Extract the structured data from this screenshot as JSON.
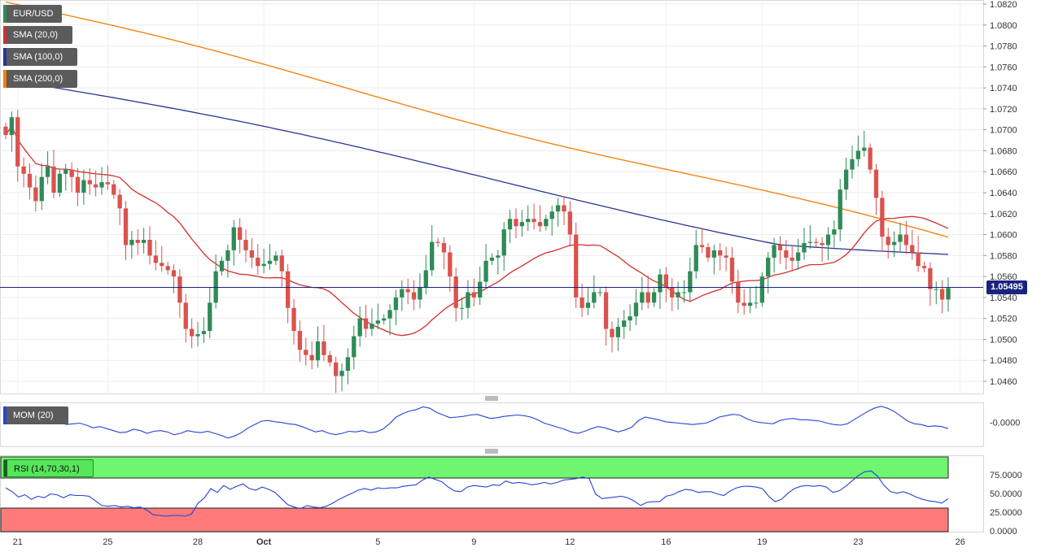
{
  "chart_data": [
    {
      "type": "candlestick",
      "symbol": "EUR/USD",
      "overlays": [
        {
          "name": "SMA (20,0)",
          "color": "#d32f2f"
        },
        {
          "name": "SMA (100,0)",
          "color": "#283593"
        },
        {
          "name": "SMA (200,0)",
          "color": "#f57c00"
        }
      ],
      "y_ticks": [
        "1.0820",
        "1.0800",
        "1.0780",
        "1.0760",
        "1.0740",
        "1.0720",
        "1.0700",
        "1.0680",
        "1.0660",
        "1.0640",
        "1.0620",
        "1.0600",
        "1.0580",
        "1.0560",
        "1.0540",
        "1.0520",
        "1.0500",
        "1.0480",
        "1.0460"
      ],
      "ylim": [
        1.045,
        1.0823
      ],
      "current_price": "1.05495",
      "x_ticks": [
        "21",
        "25",
        "28",
        "Oct",
        "5",
        "9",
        "12",
        "16",
        "19",
        "23",
        "26"
      ],
      "closes": [
        1.0695,
        1.0712,
        1.0665,
        1.0658,
        1.0645,
        1.0632,
        1.0655,
        1.0665,
        1.064,
        1.0658,
        1.0662,
        1.0655,
        1.064,
        1.0652,
        1.0648,
        1.0645,
        1.065,
        1.0648,
        1.0638,
        1.0625,
        1.059,
        1.0595,
        1.0592,
        1.0595,
        1.058,
        1.0573,
        1.057,
        1.0566,
        1.056,
        1.0535,
        1.051,
        1.0503,
        1.0505,
        1.0508,
        1.0535,
        1.0565,
        1.0575,
        1.0585,
        1.0607,
        1.0595,
        1.0585,
        1.0578,
        1.057,
        1.0572,
        1.0575,
        1.058,
        1.0565,
        1.053,
        1.0508,
        1.049,
        1.0485,
        1.048,
        1.0498,
        1.0485,
        1.0478,
        1.0465,
        1.047,
        1.0483,
        1.0503,
        1.052,
        1.051,
        1.0515,
        1.0518,
        1.052,
        1.0528,
        1.054,
        1.0548,
        1.0545,
        1.0538,
        1.055,
        1.0566,
        1.0593,
        1.0592,
        1.0583,
        1.056,
        1.053,
        1.053,
        1.0545,
        1.054,
        1.0555,
        1.0575,
        1.0578,
        1.058,
        1.0605,
        1.0615,
        1.0608,
        1.0612,
        1.0615,
        1.0612,
        1.0608,
        1.0615,
        1.0622,
        1.0628,
        1.0622,
        1.06,
        1.054,
        1.053,
        1.0535,
        1.0545,
        1.0545,
        1.051,
        1.0502,
        1.0512,
        1.0518,
        1.0522,
        1.0535,
        1.0545,
        1.0535,
        1.0545,
        1.0562,
        1.055,
        1.054,
        1.0545,
        1.0545,
        1.0565,
        1.059,
        1.0588,
        1.0578,
        1.0585,
        1.058,
        1.0578,
        1.0555,
        1.0535,
        1.0532,
        1.0535,
        1.0535,
        1.056,
        1.0578,
        1.059,
        1.0585,
        1.0578,
        1.0575,
        1.0583,
        1.0592,
        1.0593,
        1.0592,
        1.059,
        1.06,
        1.0605,
        1.0643,
        1.0662,
        1.0672,
        1.068,
        1.0683,
        1.0662,
        1.0635,
        1.0598,
        1.059,
        1.0593,
        1.06,
        1.059,
        1.0583,
        1.057,
        1.0568,
        1.0548,
        1.0548,
        1.0538,
        1.0549
      ]
    },
    {
      "type": "line",
      "indicator": "MOM (20)",
      "y_ticks": [
        "-0.0000"
      ],
      "ylim": [
        -0.034,
        0.026
      ],
      "values": [
        0.005,
        0.004,
        0.001,
        0.002,
        -0.001,
        0.003,
        0.002,
        -0.002,
        0.001,
        -0.003,
        -0.002,
        -0.001,
        -0.004,
        -0.008,
        -0.006,
        -0.009,
        -0.012,
        -0.015,
        -0.014,
        -0.01,
        -0.012,
        -0.016,
        -0.013,
        -0.012,
        -0.014,
        -0.018,
        -0.016,
        -0.012,
        -0.014,
        -0.015,
        -0.013,
        -0.016,
        -0.019,
        -0.023,
        -0.02,
        -0.015,
        -0.008,
        -0.003,
        0.002,
        0.003,
        0.001,
        0.0,
        -0.002,
        -0.003,
        -0.006,
        -0.01,
        -0.014,
        -0.012,
        -0.016,
        -0.018,
        -0.016,
        -0.013,
        -0.014,
        -0.012,
        -0.015,
        -0.014,
        -0.01,
        -0.002,
        0.008,
        0.013,
        0.017,
        0.019,
        0.023,
        0.021,
        0.015,
        0.011,
        0.007,
        0.008,
        0.009,
        0.011,
        0.012,
        0.009,
        0.006,
        0.007,
        0.009,
        0.01,
        0.011,
        0.01,
        0.008,
        0.004,
        -0.001,
        -0.004,
        -0.007,
        -0.01,
        -0.014,
        -0.016,
        -0.013,
        -0.009,
        -0.006,
        -0.008,
        -0.011,
        -0.014,
        -0.011,
        -0.007,
        0.003,
        0.008,
        0.006,
        0.004,
        0.001,
        0.0,
        -0.001,
        -0.002,
        -0.003,
        -0.002,
        -0.001,
        0.003,
        0.008,
        0.01,
        0.012,
        0.011,
        0.006,
        0.002,
        0.0,
        -0.001,
        -0.002,
        0.003,
        0.005,
        0.006,
        0.004,
        0.004,
        0.003,
        0.002,
        -0.001,
        -0.003,
        -0.004,
        -0.002,
        0.004,
        0.01,
        0.016,
        0.021,
        0.024,
        0.021,
        0.016,
        0.009,
        0.002,
        -0.002,
        -0.003,
        -0.006,
        -0.005,
        -0.006,
        -0.009
      ]
    },
    {
      "type": "line",
      "indicator": "RSI (14,70,30,1)",
      "y_ticks": [
        "75.0000",
        "50.0000",
        "25.0000",
        "0.0000"
      ],
      "ylim": [
        0,
        95
      ],
      "overbought": 70,
      "oversold": 30,
      "values": [
        55,
        50,
        43,
        46,
        40,
        44,
        42,
        47,
        46,
        42,
        46,
        45,
        45,
        44,
        38,
        32,
        31,
        32,
        30,
        31,
        29,
        30,
        26,
        20,
        19,
        18,
        19,
        19,
        18,
        21,
        35,
        42,
        54,
        49,
        58,
        53,
        57,
        60,
        54,
        52,
        56,
        53,
        49,
        41,
        33,
        30,
        28,
        32,
        30,
        29,
        31,
        35,
        40,
        44,
        48,
        52,
        54,
        52,
        55,
        54,
        55,
        55,
        57,
        58,
        59,
        65,
        69,
        66,
        63,
        56,
        51,
        50,
        56,
        58,
        57,
        56,
        59,
        58,
        64,
        61,
        62,
        61,
        59,
        60,
        62,
        60,
        62,
        65,
        66,
        67,
        69,
        67,
        47,
        41,
        42,
        43,
        44,
        42,
        38,
        32,
        36,
        37,
        37,
        44,
        46,
        50,
        53,
        52,
        49,
        50,
        50,
        47,
        45,
        51,
        55,
        57,
        57,
        56,
        54,
        44,
        37,
        40,
        48,
        54,
        57,
        58,
        57,
        58,
        56,
        49,
        51,
        57,
        64,
        71,
        76,
        77,
        70,
        58,
        50,
        48,
        50,
        47,
        43,
        40,
        38,
        37,
        35,
        41
      ]
    }
  ],
  "legend": {
    "symbol": "EUR/USD",
    "sma20": "SMA (20,0)",
    "sma100": "SMA (100,0)",
    "sma200": "SMA (200,0)",
    "mom": "MOM (20)",
    "rsi": "RSI (14,70,30,1)"
  },
  "colors": {
    "up": "#2e8b57",
    "down": "#d9534f",
    "sma20": "#d32f2f",
    "sma100": "#283593",
    "sma200": "#f57c00",
    "mom": "#2743d6",
    "rsi": "#2743d6",
    "overbought_fill": "#6ff56f",
    "oversold_fill": "#ff7b7b",
    "price_line": "#1a237e"
  }
}
